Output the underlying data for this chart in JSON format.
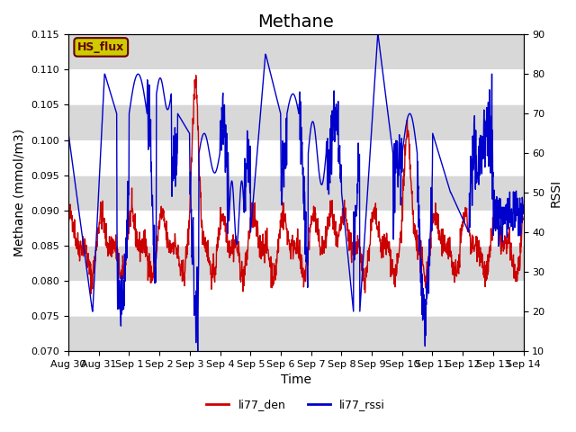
{
  "title": "Methane",
  "xlabel": "Time",
  "ylabel_left": "Methane (mmol/m3)",
  "ylabel_right": "RSSI",
  "ylim_left": [
    0.07,
    0.115
  ],
  "ylim_right": [
    10,
    90
  ],
  "yticks_left": [
    0.07,
    0.075,
    0.08,
    0.085,
    0.09,
    0.095,
    0.1,
    0.105,
    0.11,
    0.115
  ],
  "yticks_right": [
    10,
    20,
    30,
    40,
    50,
    60,
    70,
    80,
    90
  ],
  "xtick_labels": [
    "Aug 30",
    "Aug 31",
    "Sep 1",
    "Sep 2",
    "Sep 3",
    "Sep 4",
    "Sep 5",
    "Sep 6",
    "Sep 7",
    "Sep 8",
    "Sep 9",
    "Sep 10",
    "Sep 11",
    "Sep 12",
    "Sep 13",
    "Sep 14"
  ],
  "color_red": "#cc0000",
  "color_blue": "#0000cc",
  "legend_labels": [
    "li77_den",
    "li77_rssi"
  ],
  "annotation_text": "HS_flux",
  "annotation_bg": "#cccc00",
  "annotation_fg": "#660000",
  "band_color": "#d8d8d8",
  "background_color": "#ffffff",
  "title_fontsize": 14,
  "axis_fontsize": 10,
  "tick_fontsize": 8
}
